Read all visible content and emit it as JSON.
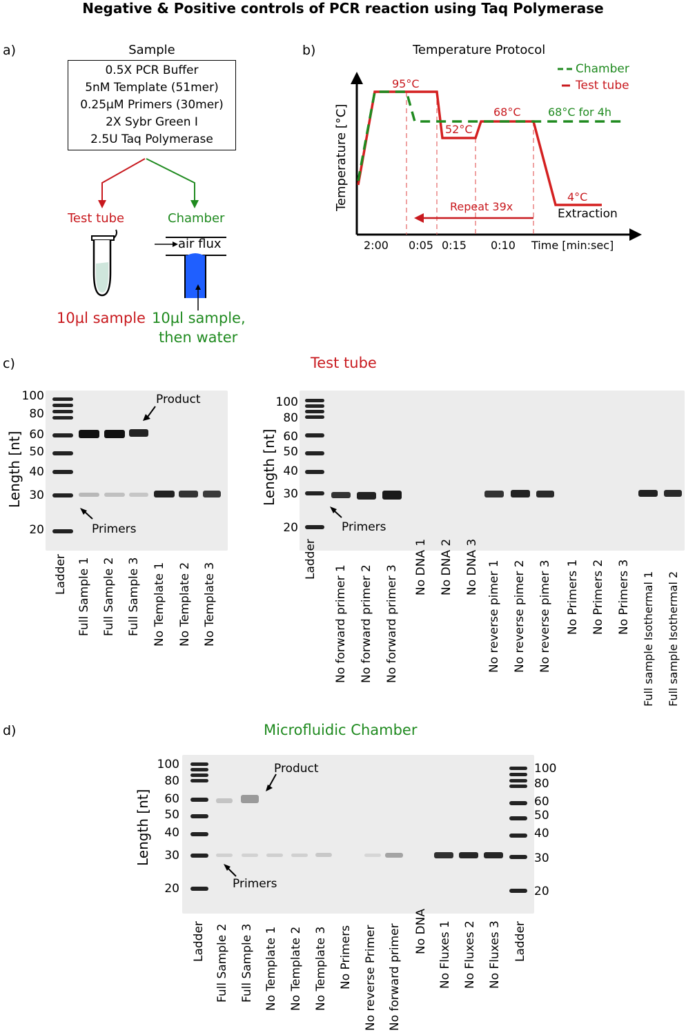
{
  "figure_title": "Negative & Positive controls of PCR reaction using Taq Polymerase",
  "panel_a": {
    "label": "a)",
    "sample_title": "Sample",
    "sample_lines": [
      "0.5X PCR Buffer",
      "5nM Template (51mer)",
      "0.25µM Primers (30mer)",
      "2X Sybr Green I",
      "2.5U Taq Polymerase"
    ],
    "test_tube_label": "Test tube",
    "chamber_label": "Chamber",
    "air_flux_label": "air flux",
    "test_tube_sample": "10µl sample",
    "chamber_sample_line1": "10µl sample,",
    "chamber_sample_line2": "then water",
    "colors": {
      "red": "#c8191e",
      "green": "#1f8a1f",
      "chamber_fill": "#1f5fff",
      "tube_fill": "#cfe6dc"
    }
  },
  "panel_b": {
    "label": "b)",
    "title": "Temperature Protocol",
    "ylabel": "Temperature [°C]",
    "xlabel": "Time [min:sec]",
    "legend": [
      {
        "name": "Chamber",
        "style": "dashed",
        "color": "#1f8a1f"
      },
      {
        "name": "Test tube",
        "style": "solid",
        "color": "#c8191e"
      }
    ],
    "annotations": {
      "t95": "95°C",
      "t52": "52°C",
      "t68": "68°C",
      "t68_hold": "68°C for 4h",
      "t4": "4°C",
      "extraction": "Extraction",
      "repeat": "Repeat 39x"
    },
    "time_ticks": [
      "2:00",
      "0:05",
      "0:15",
      "0:10"
    ]
  },
  "panel_c": {
    "label": "c)",
    "title": "Test tube",
    "ylabel": "Length [nt]",
    "ladder_ticks": [
      "100",
      "80",
      "60",
      "50",
      "40",
      "30",
      "20"
    ],
    "left_gel": {
      "lanes": [
        "Ladder",
        "Full Sample 1",
        "Full Sample 2",
        "Full Sample 3",
        "No Template 1",
        "No Template 2",
        "No Template 3"
      ],
      "product_label": "Product",
      "primers_label": "Primers"
    },
    "right_gel": {
      "lanes": [
        "Ladder",
        "No forward primer 1",
        "No forward primer 2",
        "No forward primer 3",
        "No DNA 1",
        "No DNA 2",
        "No DNA 3",
        "No reverse pimer 1",
        "No reverse pimer 2",
        "No reverse pimer 3",
        "No Primers 1",
        "No Primers 2",
        "No Primers 3",
        "Full sample Isothermal 1",
        "Full sample Isothermal 2"
      ],
      "primers_label": "Primers"
    }
  },
  "panel_d": {
    "label": "d)",
    "title": "Microfluidic Chamber",
    "ylabel": "Length [nt]",
    "ladder_ticks": [
      "100",
      "80",
      "60",
      "50",
      "40",
      "30",
      "20"
    ],
    "lanes": [
      "Ladder",
      "Full Sample 2",
      "Full Sample 3",
      "No Template 1",
      "No Template 2",
      "No Template 3",
      "No Primers",
      "No reverse Primer",
      "No forward primer",
      "No DNA",
      "No Fluxes 1",
      "No Fluxes 2",
      "No Fluxes 3",
      "Ladder"
    ],
    "product_label": "Product",
    "primers_label": "Primers"
  }
}
